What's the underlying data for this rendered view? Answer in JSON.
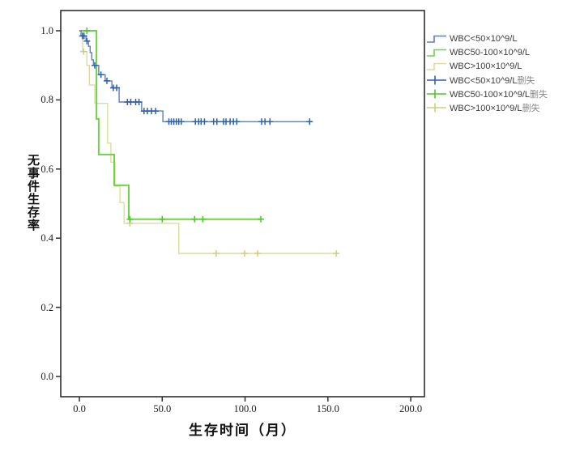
{
  "chart_data": {
    "type": "line",
    "subtype": "kaplan-meier-step",
    "title": "",
    "xlabel": "生存时间（月）",
    "ylabel": "无事件生存率",
    "xlim": [
      -11.2,
      208.3
    ],
    "ylim": [
      -0.059,
      1.059
    ],
    "grid": false,
    "x_ticks": {
      "values": [
        0,
        50,
        100,
        150,
        200
      ],
      "labels": [
        "0.0",
        "50.0",
        "100.0",
        "150.0",
        "200.0"
      ]
    },
    "y_ticks": {
      "values": [
        0.0,
        0.2,
        0.4,
        0.6,
        0.8,
        1.0
      ],
      "labels": [
        "0.0",
        "0.2",
        "0.4",
        "0.6",
        "0.8",
        "1.0"
      ]
    },
    "series": [
      {
        "name": "WBC<50×10^9/L",
        "color": "#5b7fc2",
        "censor_color": "#2e5fae",
        "line_width": 1.4,
        "steps": [
          [
            0,
            1.0
          ],
          [
            1,
            0.985
          ],
          [
            4,
            0.97
          ],
          [
            5.5,
            0.955
          ],
          [
            6.5,
            0.937
          ],
          [
            7.5,
            0.916
          ],
          [
            8.5,
            0.9
          ],
          [
            11.7,
            0.873
          ],
          [
            15.6,
            0.855
          ],
          [
            19.6,
            0.835
          ],
          [
            24,
            0.794
          ],
          [
            37.6,
            0.768
          ],
          [
            50.4,
            0.737
          ]
        ],
        "end_time": 140.5,
        "censors": [
          [
            1.8,
            0.985
          ],
          [
            2.8,
            0.985
          ],
          [
            4.6,
            0.97
          ],
          [
            9.3,
            0.9
          ],
          [
            13,
            0.873
          ],
          [
            16.6,
            0.855
          ],
          [
            20.5,
            0.835
          ],
          [
            22.5,
            0.835
          ],
          [
            29,
            0.794
          ],
          [
            31,
            0.794
          ],
          [
            34,
            0.794
          ],
          [
            36,
            0.794
          ],
          [
            39,
            0.768
          ],
          [
            41,
            0.768
          ],
          [
            43.5,
            0.768
          ],
          [
            46,
            0.768
          ],
          [
            54,
            0.737
          ],
          [
            55.5,
            0.737
          ],
          [
            57,
            0.737
          ],
          [
            58.5,
            0.737
          ],
          [
            60,
            0.737
          ],
          [
            61.5,
            0.737
          ],
          [
            70,
            0.737
          ],
          [
            72,
            0.737
          ],
          [
            73.5,
            0.737
          ],
          [
            75.5,
            0.737
          ],
          [
            81,
            0.737
          ],
          [
            83,
            0.737
          ],
          [
            87,
            0.737
          ],
          [
            88.5,
            0.737
          ],
          [
            91,
            0.737
          ],
          [
            93,
            0.737
          ],
          [
            95,
            0.737
          ],
          [
            110,
            0.737
          ],
          [
            112,
            0.737
          ],
          [
            115,
            0.737
          ],
          [
            139,
            0.737
          ]
        ]
      },
      {
        "name": "WBC50-100×10^9/L",
        "color": "#6ed348",
        "censor_color": "#4cc629",
        "line_width": 2.0,
        "steps": [
          [
            0,
            1.0
          ],
          [
            10.3,
            0.745
          ],
          [
            11.7,
            0.642
          ],
          [
            21,
            0.553
          ],
          [
            29.8,
            0.455
          ]
        ],
        "end_time": 109.5,
        "censors": [
          [
            4.5,
            1.0
          ],
          [
            30.5,
            0.455
          ],
          [
            50,
            0.455
          ],
          [
            69.5,
            0.455
          ],
          [
            74.5,
            0.455
          ],
          [
            109.5,
            0.455
          ]
        ]
      },
      {
        "name": "WBC>100×10^9/L",
        "color": "#dddc9e",
        "censor_color": "#d0ce7c",
        "line_width": 1.4,
        "steps": [
          [
            0,
            1.0
          ],
          [
            2,
            0.94
          ],
          [
            4.5,
            0.9
          ],
          [
            6,
            0.843
          ],
          [
            9.3,
            0.79
          ],
          [
            17,
            0.675
          ],
          [
            19,
            0.62
          ],
          [
            21.5,
            0.55
          ],
          [
            24.5,
            0.503
          ],
          [
            27,
            0.443
          ],
          [
            60,
            0.356
          ]
        ],
        "end_time": 156,
        "censors": [
          [
            2.5,
            0.94
          ],
          [
            30.5,
            0.443
          ],
          [
            82.6,
            0.356
          ],
          [
            99.7,
            0.356
          ],
          [
            107.6,
            0.356
          ],
          [
            155,
            0.356
          ]
        ]
      }
    ],
    "legend": {
      "position": "top-right-outside",
      "items": [
        {
          "label": "WBC<50×10^9/L",
          "suffix": "",
          "series_index": 0,
          "glyph": "step-line"
        },
        {
          "label": "WBC50-100×10^9/L",
          "suffix": "",
          "series_index": 1,
          "glyph": "step-line"
        },
        {
          "label": "WBC>100×10^9/L",
          "suffix": "",
          "series_index": 2,
          "glyph": "step-line"
        },
        {
          "label": "WBC<50×10^9/L",
          "suffix": "删失",
          "series_index": 0,
          "glyph": "censor-cross"
        },
        {
          "label": "WBC50-100×10^9/L",
          "suffix": "删失",
          "series_index": 1,
          "glyph": "censor-cross"
        },
        {
          "label": "WBC>100×10^9/L",
          "suffix": "删失",
          "series_index": 2,
          "glyph": "censor-cross"
        }
      ]
    },
    "axis_color": "#2e2e2e"
  }
}
